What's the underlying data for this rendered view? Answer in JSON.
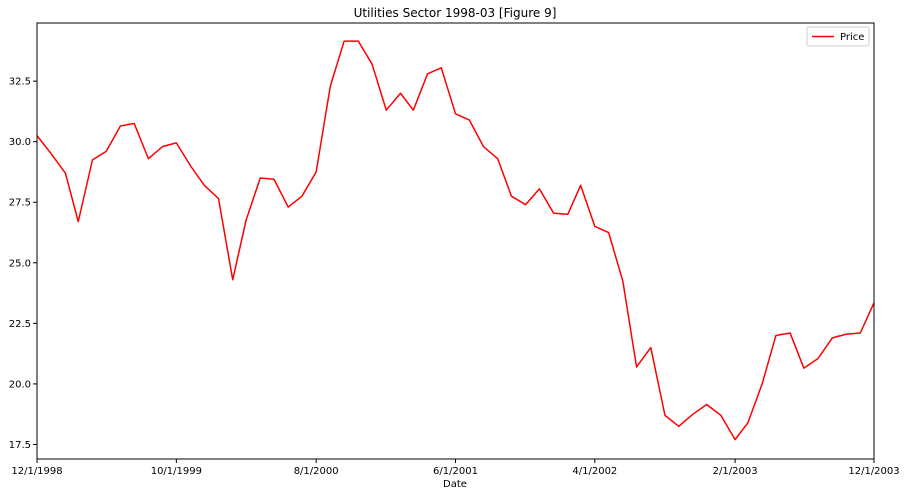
{
  "chart_data": {
    "type": "line",
    "title": "Utilities Sector 1998-03 [Figure 9]",
    "xlabel": "Date",
    "ylabel": "",
    "x_tick_labels": [
      "12/1/1998",
      "10/1/1999",
      "8/1/2000",
      "6/1/2001",
      "4/1/2002",
      "2/1/2003",
      "12/1/2003"
    ],
    "x_tick_dates": [
      "1998-12-01",
      "1999-10-01",
      "2000-08-01",
      "2001-06-01",
      "2002-04-01",
      "2003-02-01",
      "2003-12-01"
    ],
    "xlim": [
      "1998-12-01",
      "2003-12-01"
    ],
    "y_ticks": [
      17.5,
      20.0,
      22.5,
      25.0,
      27.5,
      30.0,
      32.5
    ],
    "y_tick_labels": [
      "17.5",
      "20.0",
      "22.5",
      "25.0",
      "27.5",
      "30.0",
      "32.5"
    ],
    "ylim": [
      16.9,
      34.9
    ],
    "grid": false,
    "legend_position": "upper right",
    "series": [
      {
        "name": "Price",
        "color": "#ff0000",
        "x": [
          "1998-12-01",
          "1999-01-01",
          "1999-02-01",
          "1999-03-01",
          "1999-04-01",
          "1999-05-01",
          "1999-06-01",
          "1999-07-01",
          "1999-08-01",
          "1999-09-01",
          "1999-10-01",
          "1999-11-01",
          "1999-12-01",
          "2000-01-01",
          "2000-02-01",
          "2000-03-01",
          "2000-04-01",
          "2000-05-01",
          "2000-06-01",
          "2000-07-01",
          "2000-08-01",
          "2000-09-01",
          "2000-10-01",
          "2000-11-01",
          "2000-12-01",
          "2001-01-01",
          "2001-02-01",
          "2001-03-01",
          "2001-04-01",
          "2001-05-01",
          "2001-06-01",
          "2001-07-01",
          "2001-08-01",
          "2001-09-01",
          "2001-10-01",
          "2001-11-01",
          "2001-12-01",
          "2002-01-01",
          "2002-02-01",
          "2002-03-01",
          "2002-04-01",
          "2002-05-01",
          "2002-06-01",
          "2002-07-01",
          "2002-08-01",
          "2002-09-01",
          "2002-10-01",
          "2002-11-01",
          "2002-12-01",
          "2003-01-01",
          "2003-02-01",
          "2003-03-01",
          "2003-04-01",
          "2003-05-01",
          "2003-06-01",
          "2003-07-01",
          "2003-08-01",
          "2003-09-01",
          "2003-10-01",
          "2003-11-01",
          "2003-12-01"
        ],
        "values": [
          30.25,
          29.5,
          28.7,
          26.7,
          29.25,
          29.6,
          30.65,
          30.75,
          29.3,
          29.8,
          29.95,
          29.0,
          28.2,
          27.65,
          24.3,
          26.75,
          28.5,
          28.45,
          27.3,
          27.75,
          28.75,
          32.3,
          34.15,
          34.15,
          33.2,
          31.3,
          32.0,
          31.3,
          32.8,
          33.05,
          31.15,
          30.9,
          29.8,
          29.3,
          27.75,
          27.4,
          28.05,
          27.05,
          27.0,
          28.2,
          26.5,
          26.25,
          24.25,
          20.7,
          21.5,
          18.7,
          18.25,
          18.75,
          19.15,
          18.7,
          17.7,
          18.4,
          20.0,
          22.0,
          22.1,
          20.65,
          21.05,
          21.9,
          22.05,
          22.1,
          23.35
        ]
      }
    ]
  }
}
